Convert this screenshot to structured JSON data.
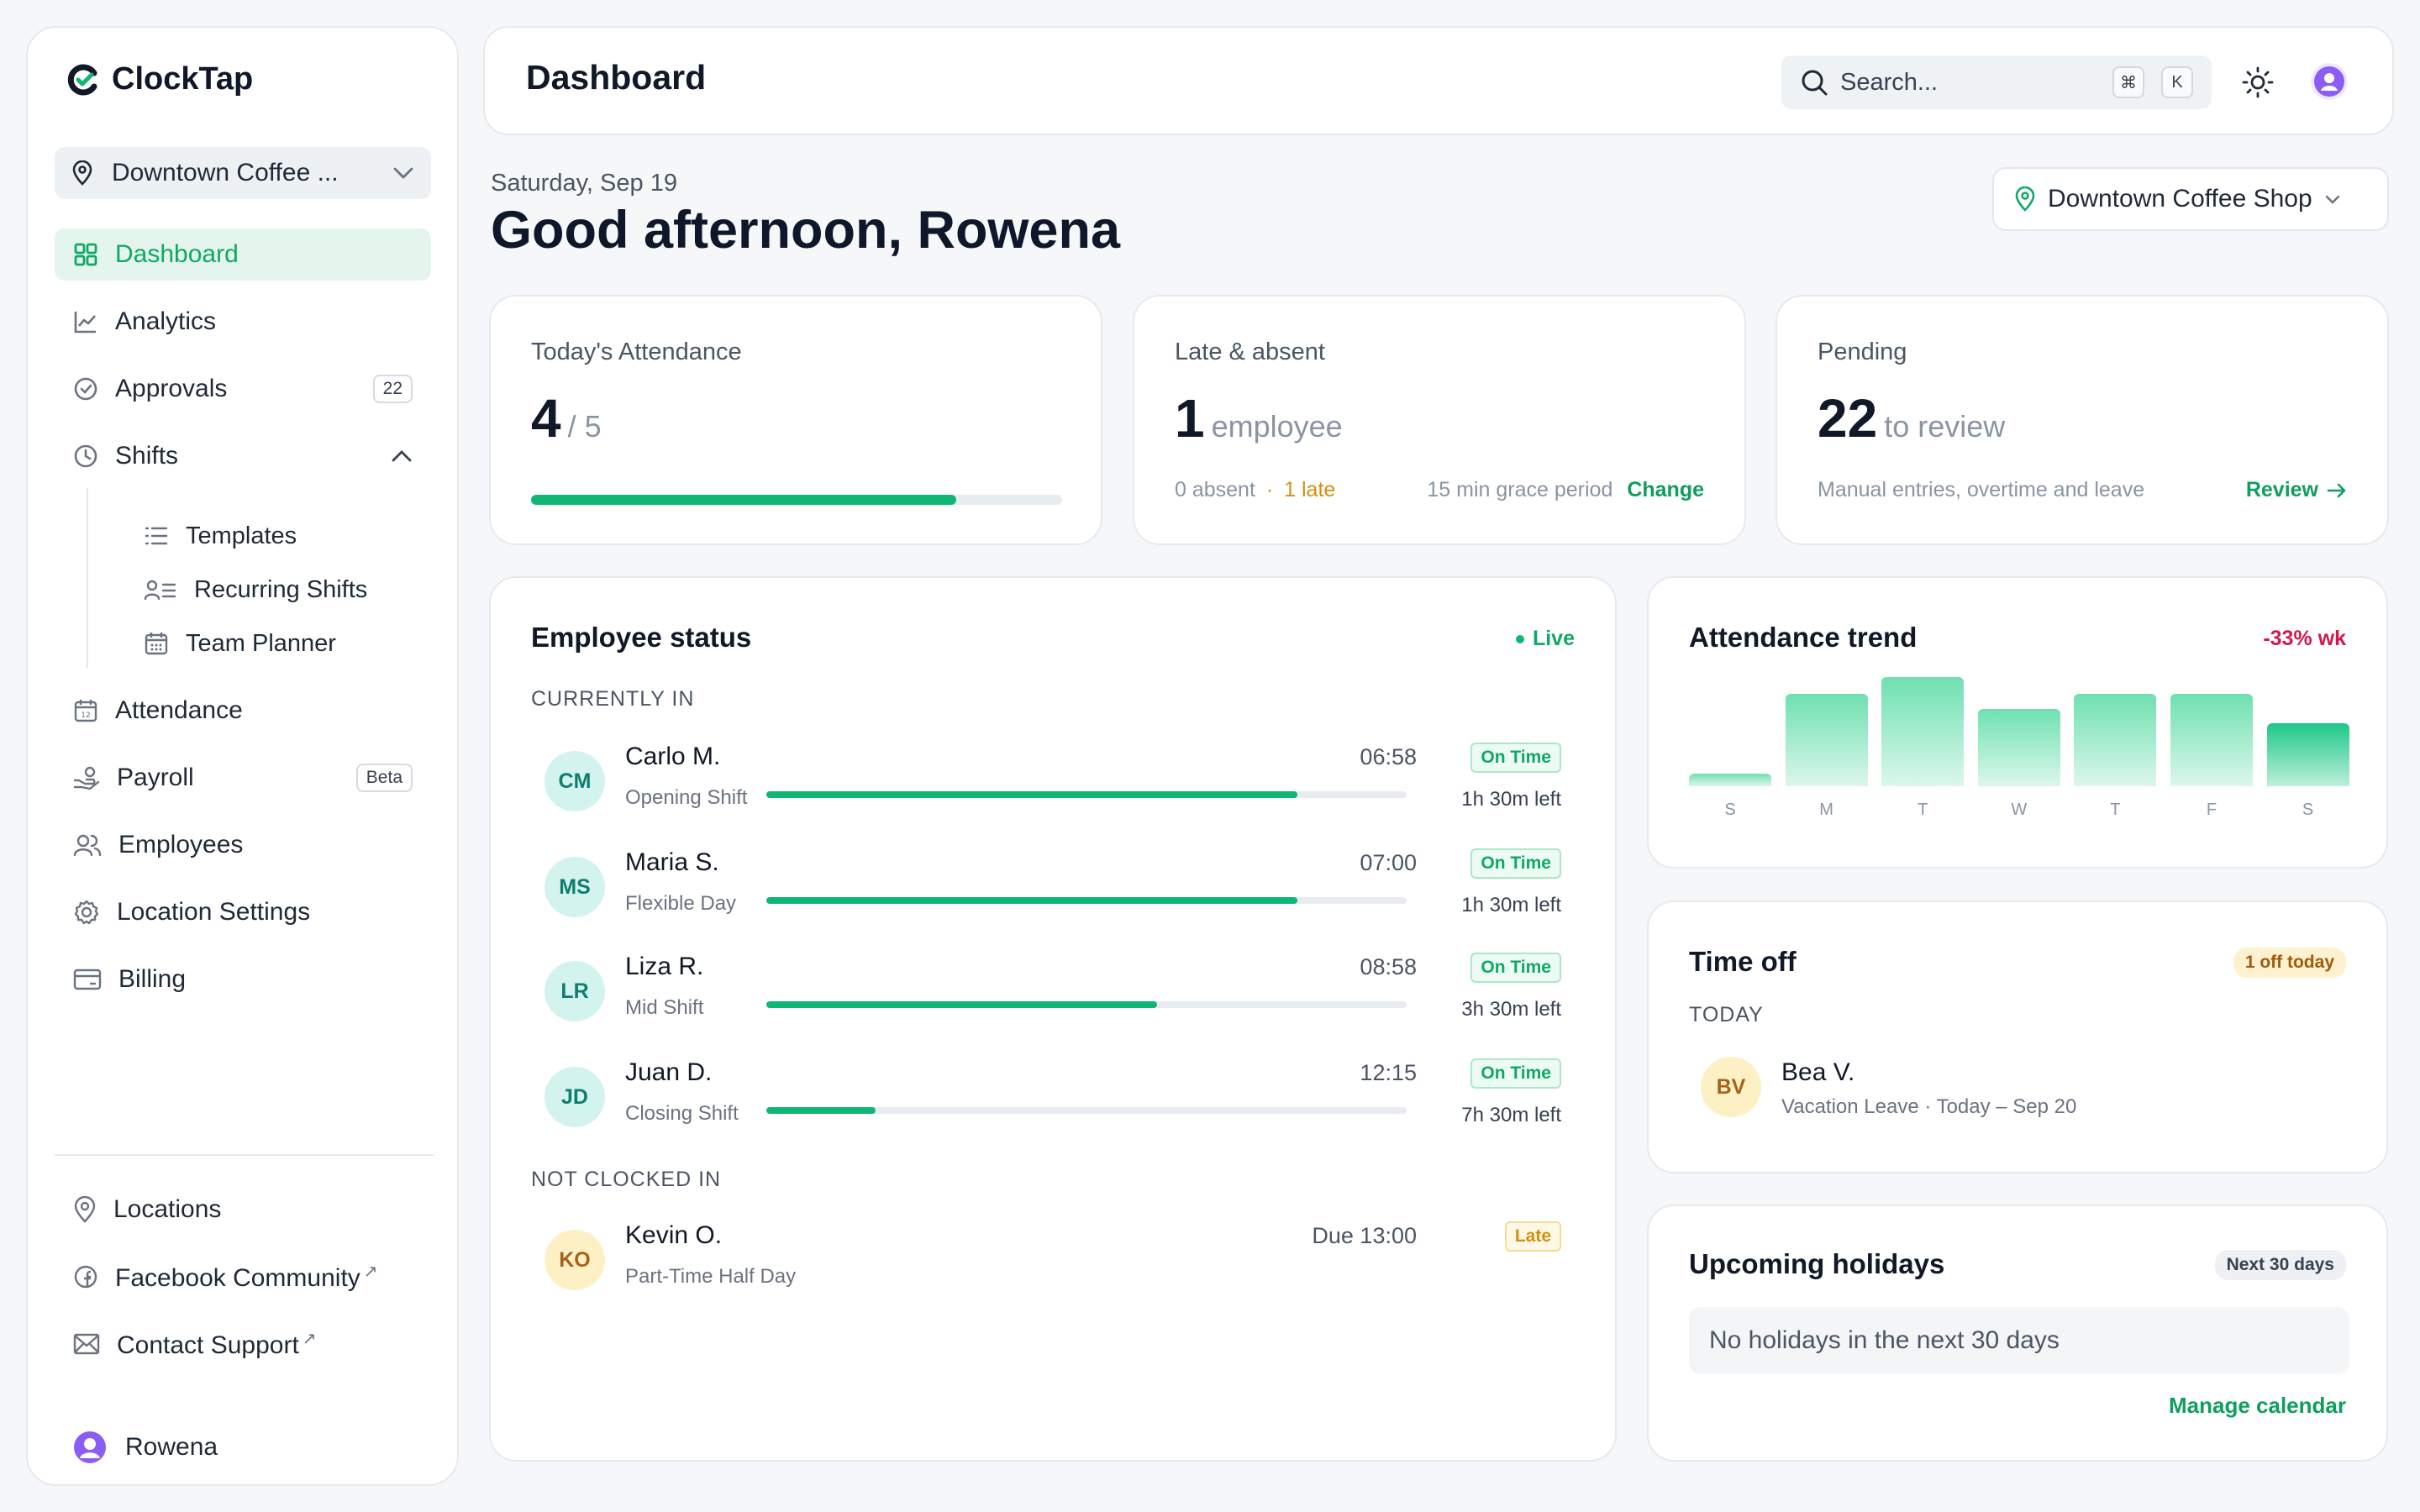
{
  "app": {
    "name": "ClockTap"
  },
  "sidebar": {
    "location_select": "Downtown Coffee ...",
    "nav": {
      "dashboard": "Dashboard",
      "analytics": "Analytics",
      "approvals": "Approvals",
      "approvals_badge": "22",
      "shifts": "Shifts",
      "templates": "Templates",
      "recurring": "Recurring Shifts",
      "planner": "Team Planner",
      "attendance": "Attendance",
      "payroll": "Payroll",
      "payroll_badge": "Beta",
      "employees": "Employees",
      "location_settings": "Location Settings",
      "billing": "Billing"
    },
    "footer": {
      "locations": "Locations",
      "facebook": "Facebook Community",
      "support": "Contact Support",
      "user": "Rowena"
    }
  },
  "header": {
    "title": "Dashboard",
    "search_placeholder": "Search...",
    "kbd1": "⌘",
    "kbd2": "K"
  },
  "greeting": {
    "date": "Saturday, Sep 19",
    "text": "Good afternoon, Rowena",
    "location_button": "Downtown Coffee Shop"
  },
  "stats": {
    "attendance": {
      "label": "Today's Attendance",
      "value": "4",
      "total": "/ 5",
      "progress": 0.8
    },
    "late": {
      "label": "Late & absent",
      "value": "1",
      "unit": "employee",
      "absent": "0 absent",
      "sep": "·",
      "late": "1 late",
      "grace": "15 min grace period",
      "change": "Change"
    },
    "pending": {
      "label": "Pending",
      "value": "22",
      "unit": "to review",
      "note": "Manual entries, overtime and leave",
      "review": "Review"
    }
  },
  "employee_status": {
    "title": "Employee status",
    "live": "Live",
    "currently_in": "CURRENTLY IN",
    "not_clocked_in": "NOT CLOCKED IN",
    "rows": [
      {
        "initials": "CM",
        "name": "Carlo M.",
        "shift": "Opening Shift",
        "time": "06:58",
        "status": "On Time",
        "left": "1h 30m left",
        "progress": 0.83
      },
      {
        "initials": "MS",
        "name": "Maria S.",
        "shift": "Flexible Day",
        "time": "07:00",
        "status": "On Time",
        "left": "1h 30m left",
        "progress": 0.83
      },
      {
        "initials": "LR",
        "name": "Liza R.",
        "shift": "Mid Shift",
        "time": "08:58",
        "status": "On Time",
        "left": "3h 30m left",
        "progress": 0.61
      },
      {
        "initials": "JD",
        "name": "Juan D.",
        "shift": "Closing Shift",
        "time": "12:15",
        "status": "On Time",
        "left": "7h 30m left",
        "progress": 0.17
      }
    ],
    "not_in": {
      "initials": "KO",
      "name": "Kevin O.",
      "shift": "Part-Time Half Day",
      "due": "Due 13:00",
      "status": "Late"
    }
  },
  "trend": {
    "title": "Attendance trend",
    "delta": "-33% wk"
  },
  "chart_data": {
    "type": "bar",
    "categories": [
      "S",
      "M",
      "T",
      "W",
      "T",
      "F",
      "S"
    ],
    "values": [
      0.15,
      1.1,
      1.3,
      0.92,
      1.1,
      1.1,
      0.75
    ],
    "ylim": [
      0,
      1.3
    ],
    "grid": false
  },
  "timeoff": {
    "title": "Time off",
    "pill": "1 off today",
    "today": "TODAY",
    "person": {
      "initials": "BV",
      "name": "Bea V.",
      "detail": "Vacation Leave · Today – Sep 20"
    }
  },
  "holidays": {
    "title": "Upcoming holidays",
    "pill": "Next 30 days",
    "empty": "No holidays in the next 30 days",
    "manage": "Manage calendar"
  },
  "colors": {
    "accent": "#10b774",
    "accent_text": "#10a866",
    "late": "#d4900e",
    "negative": "#d0194e"
  }
}
